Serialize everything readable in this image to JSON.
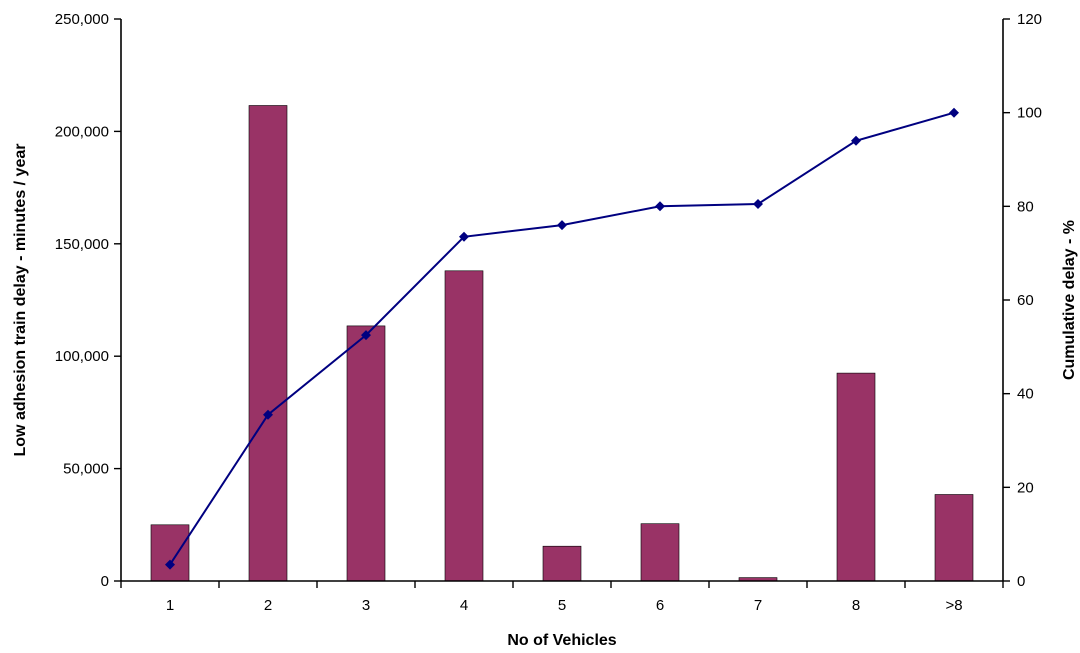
{
  "chart_data": {
    "type": "bar",
    "categories": [
      "1",
      "2",
      "3",
      "4",
      "5",
      "6",
      "7",
      "8",
      ">8"
    ],
    "series": [
      {
        "type": "bar",
        "axis": "left",
        "values": [
          25000,
          211500,
          113500,
          138000,
          15500,
          25500,
          1500,
          92500,
          38500
        ],
        "color": "#993366"
      },
      {
        "type": "line",
        "axis": "right",
        "values": [
          3.5,
          35.5,
          52.5,
          73.5,
          76,
          80,
          80.5,
          94,
          100
        ],
        "color": "#000080",
        "marker": "diamond"
      }
    ],
    "xlabel": "No of Vehicles",
    "ylabel": "Low adhesion train delay - minutes / year",
    "y2label": "Cumulative delay - %",
    "ylim": [
      0,
      250000
    ],
    "y2lim": [
      0,
      120
    ],
    "yticks": [
      "0",
      "50,000",
      "100,000",
      "150,000",
      "200,000",
      "250,000"
    ],
    "y2ticks": [
      "0",
      "20",
      "40",
      "60",
      "80",
      "100",
      "120"
    ],
    "grid": false,
    "legend": "none"
  }
}
